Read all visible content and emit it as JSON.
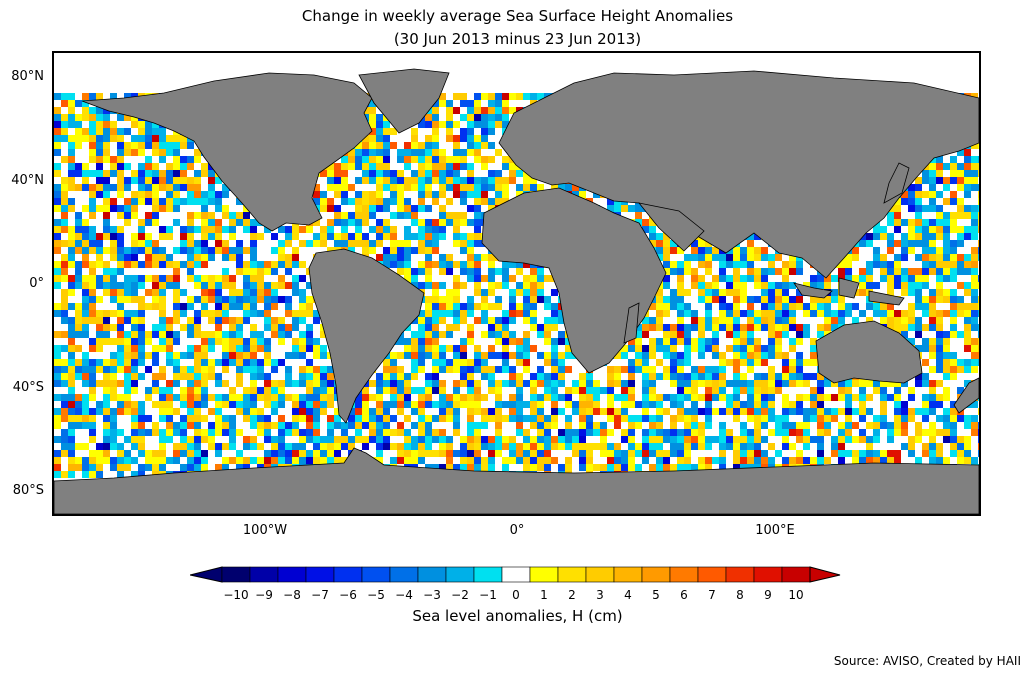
{
  "title": {
    "line1": "Change in weekly average Sea Surface Height Anomalies",
    "line2": "(30 Jun 2013 minus 23 Jun 2013)"
  },
  "map": {
    "land_color": "#808080",
    "ocean_no_data_color": "#ffffff",
    "lat_labels": [
      "80°N",
      "40°N",
      "0°",
      "40°S",
      "80°S"
    ],
    "lon_labels": [
      "100°W",
      "0°",
      "100°E"
    ]
  },
  "colorbar": {
    "label": "Sea level anomalies, H (cm)",
    "ticks": [
      "−10",
      "−9",
      "−8",
      "−7",
      "−6",
      "−5",
      "−4",
      "−3",
      "−2",
      "−1",
      "0",
      "1",
      "2",
      "3",
      "4",
      "5",
      "6",
      "7",
      "8",
      "9",
      "10"
    ],
    "colors": [
      "#00006e",
      "#0000a8",
      "#0000d2",
      "#0010e6",
      "#0030f0",
      "#0050f0",
      "#0070e8",
      "#0090e0",
      "#00b0e8",
      "#00e0f0",
      "#ffffff",
      "#ffff00",
      "#ffe000",
      "#ffcc00",
      "#ffb400",
      "#ff9a00",
      "#ff7a00",
      "#ff5a00",
      "#f03000",
      "#e01000",
      "#c80000"
    ]
  },
  "source": "Source: AVISO, Created by HAII"
}
